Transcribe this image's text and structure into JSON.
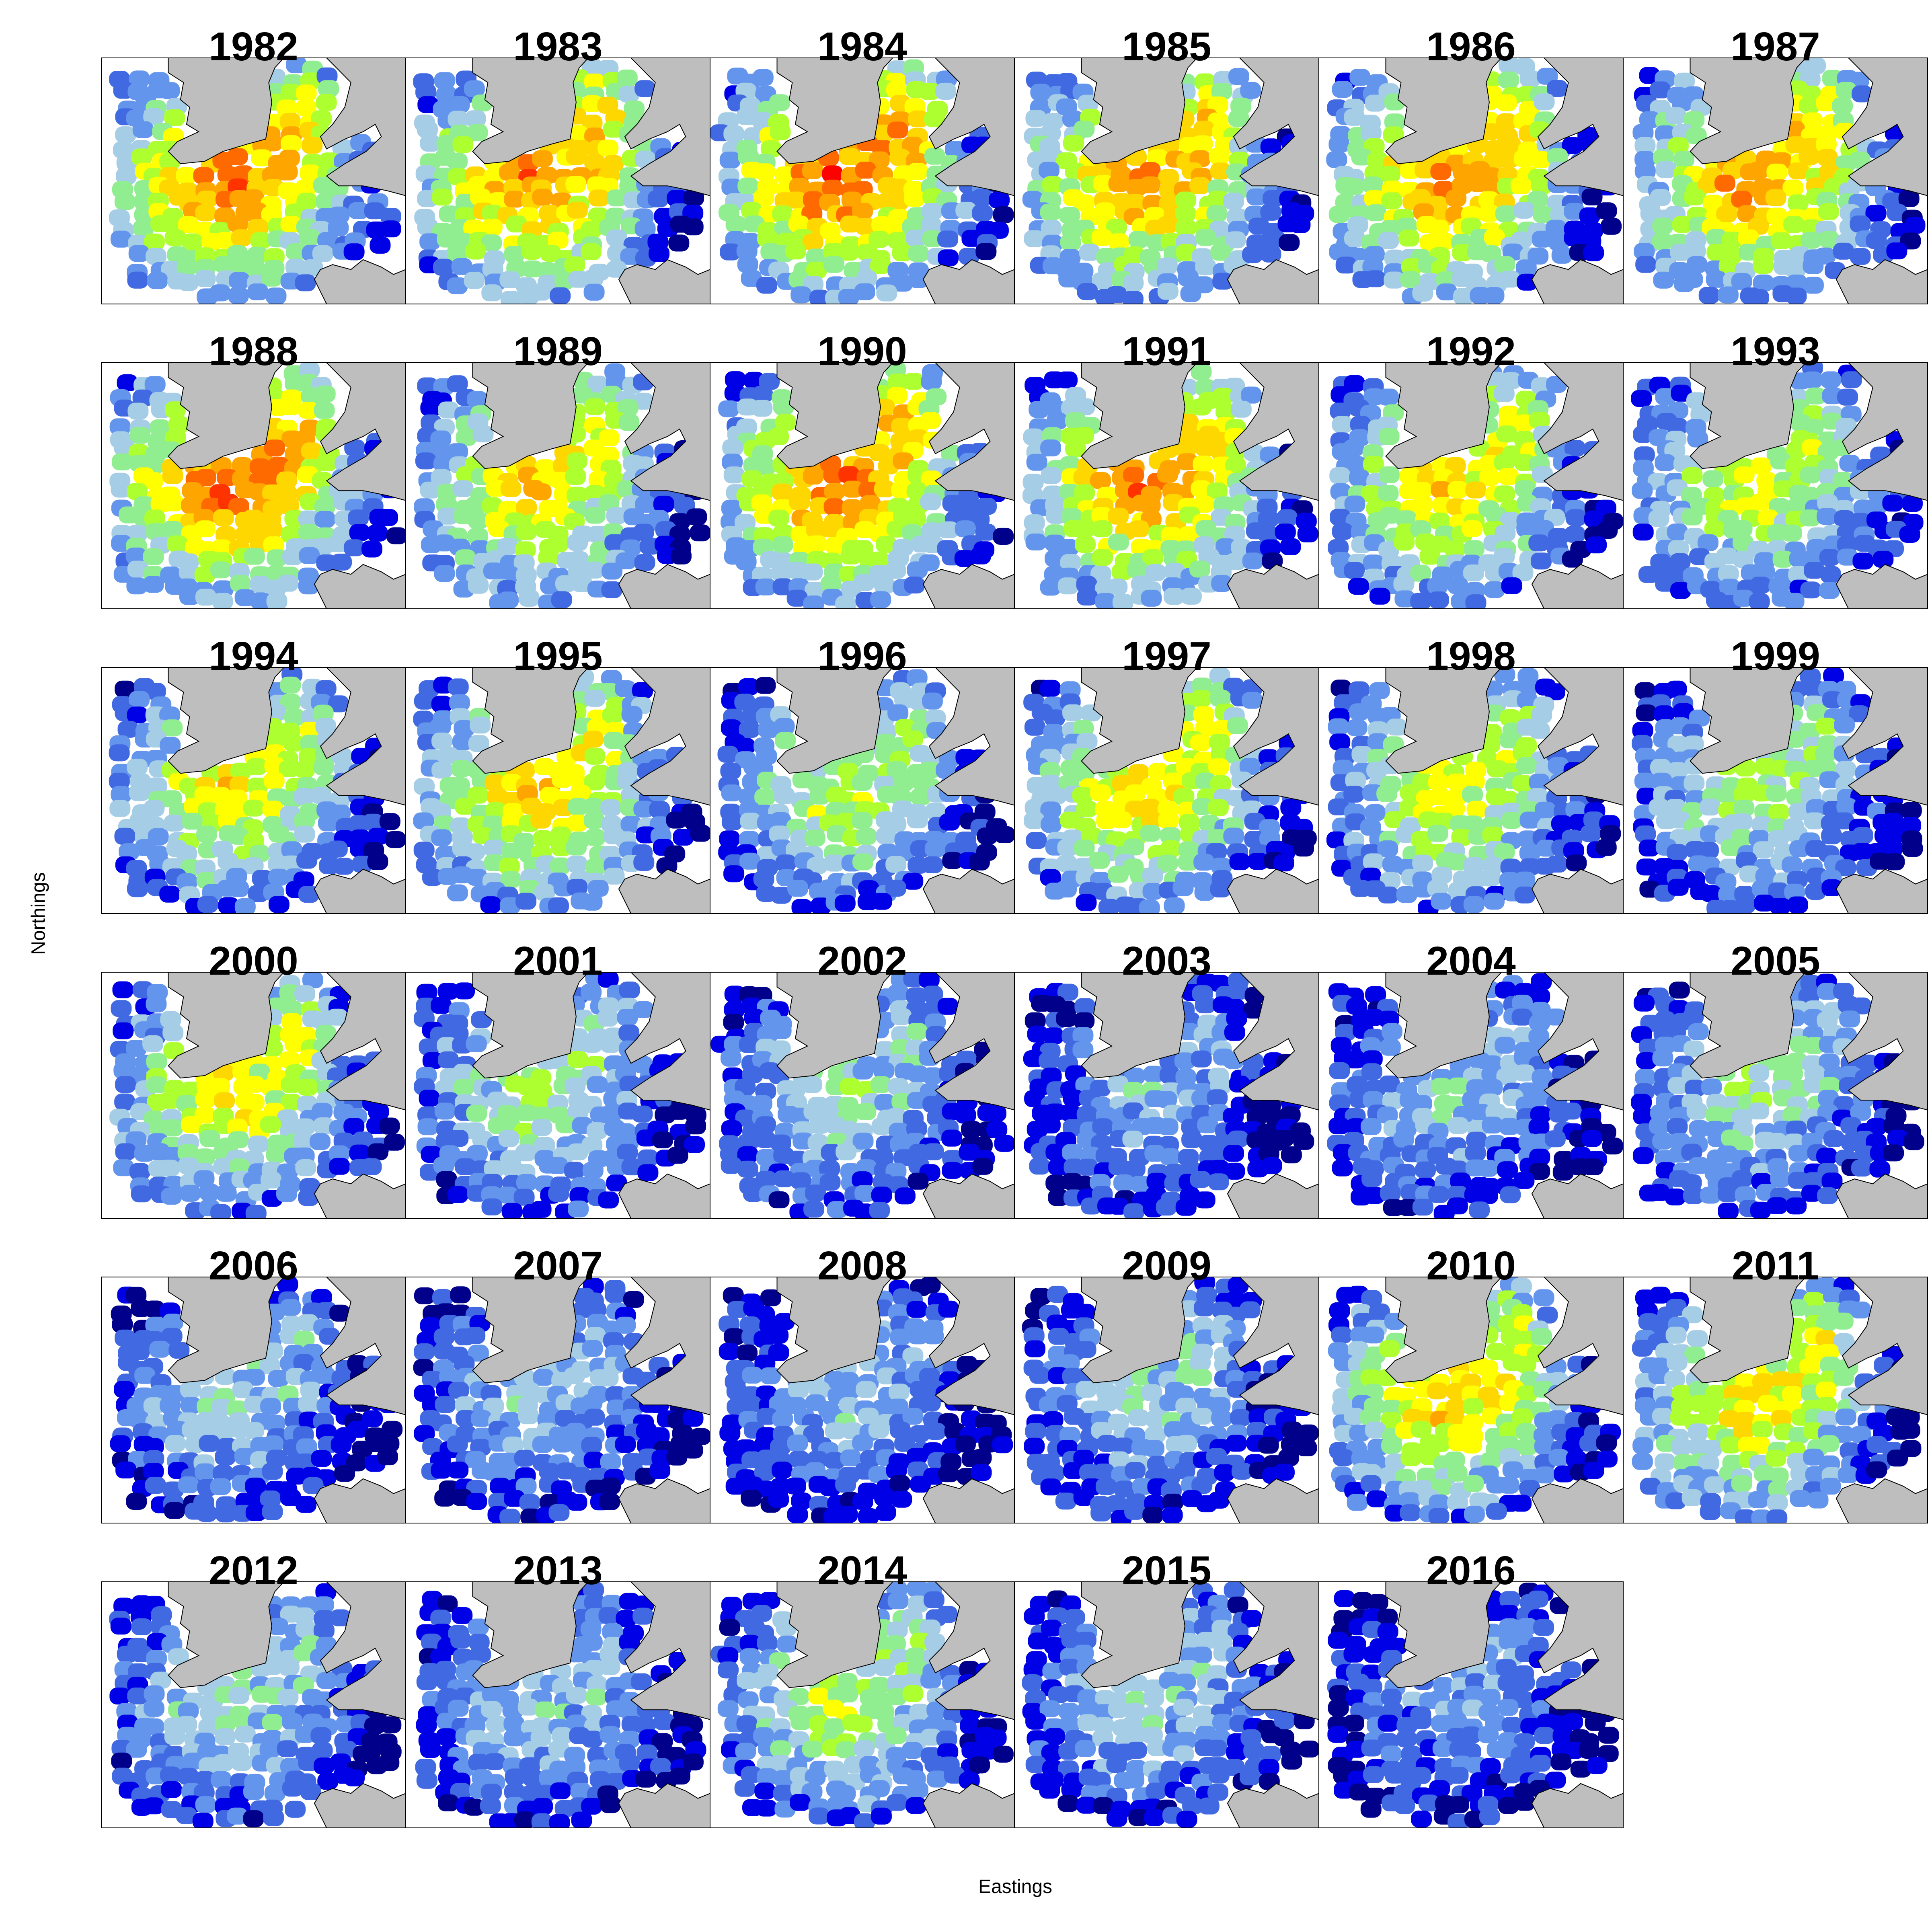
{
  "figure": {
    "xlabel": "Eastings",
    "ylabel": "Northings"
  },
  "panels": [
    {
      "year": "1982",
      "level": 0.85
    },
    {
      "year": "1983",
      "level": 0.82
    },
    {
      "year": "1984",
      "level": 0.9
    },
    {
      "year": "1985",
      "level": 0.8
    },
    {
      "year": "1986",
      "level": 0.82
    },
    {
      "year": "1987",
      "level": 0.8
    },
    {
      "year": "1988",
      "level": 0.88
    },
    {
      "year": "1989",
      "level": 0.7
    },
    {
      "year": "1990",
      "level": 0.85
    },
    {
      "year": "1991",
      "level": 0.82
    },
    {
      "year": "1992",
      "level": 0.7
    },
    {
      "year": "1993",
      "level": 0.6
    },
    {
      "year": "1994",
      "level": 0.65
    },
    {
      "year": "1995",
      "level": 0.7
    },
    {
      "year": "1996",
      "level": 0.55
    },
    {
      "year": "1997",
      "level": 0.68
    },
    {
      "year": "1998",
      "level": 0.62
    },
    {
      "year": "1999",
      "level": 0.5
    },
    {
      "year": "2000",
      "level": 0.65
    },
    {
      "year": "2001",
      "level": 0.5
    },
    {
      "year": "2002",
      "level": 0.45
    },
    {
      "year": "2003",
      "level": 0.35
    },
    {
      "year": "2004",
      "level": 0.4
    },
    {
      "year": "2005",
      "level": 0.45
    },
    {
      "year": "2006",
      "level": 0.4
    },
    {
      "year": "2007",
      "level": 0.38
    },
    {
      "year": "2008",
      "level": 0.35
    },
    {
      "year": "2009",
      "level": 0.4
    },
    {
      "year": "2010",
      "level": 0.7
    },
    {
      "year": "2011",
      "level": 0.68
    },
    {
      "year": "2012",
      "level": 0.45
    },
    {
      "year": "2013",
      "level": 0.4
    },
    {
      "year": "2014",
      "level": 0.55
    },
    {
      "year": "2015",
      "level": 0.4
    },
    {
      "year": "2016",
      "level": 0.3
    }
  ],
  "colors": {
    "land": "#bebebe",
    "frame": "#000000",
    "sea": "#ffffff",
    "scale": [
      "#00008b",
      "#0000e6",
      "#4169e1",
      "#6495ed",
      "#a6cde6",
      "#90ee90",
      "#adff2f",
      "#ffff00",
      "#ffd700",
      "#ffa500",
      "#ff6a00",
      "#ff3300",
      "#ff0000"
    ]
  }
}
